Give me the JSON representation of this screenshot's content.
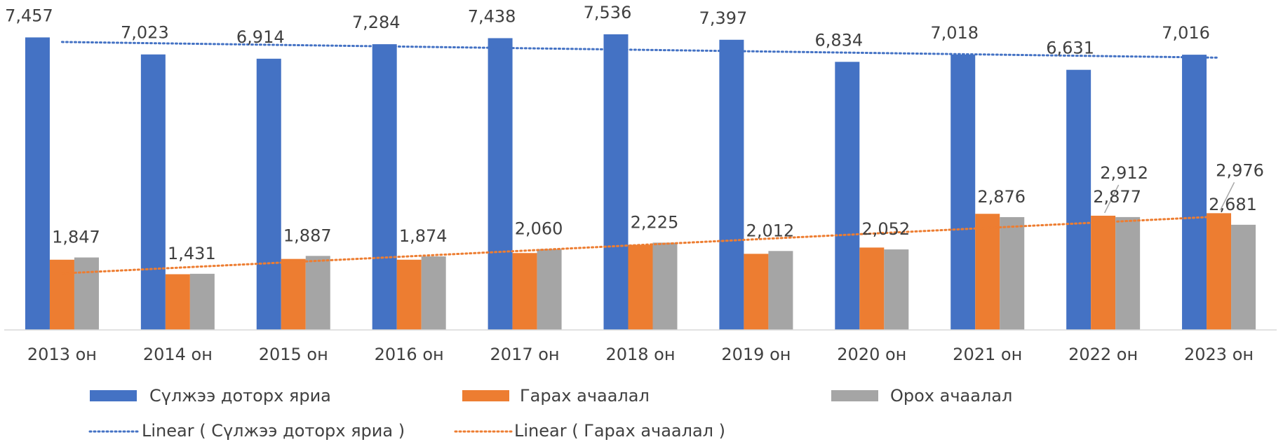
{
  "chart_data": {
    "type": "bar",
    "categories": [
      "2013 он",
      "2014 он",
      "2015 он",
      "2016 он",
      "2017 он",
      "2018 он",
      "2019 он",
      "2020 он",
      "2021 он",
      "2022 он",
      "2023 он"
    ],
    "series": [
      {
        "name": "Сүлжээ доторх яриа",
        "color": "#4472c4",
        "values": [
          7457,
          7023,
          6914,
          7284,
          7438,
          7536,
          7397,
          6834,
          7018,
          6631,
          7016
        ],
        "value_labels": [
          "7,457",
          "7,023",
          "6,914",
          "7,284",
          "7,438",
          "7,536",
          "7,397",
          "6,834",
          "7,018",
          "6,631",
          "7,016"
        ]
      },
      {
        "name": "Гарах ачаалал",
        "color": "#ed7d31",
        "values": [
          1790,
          1420,
          1810,
          1790,
          1960,
          2170,
          1940,
          2100,
          2960,
          2912,
          2976
        ],
        "value_labels": [
          null,
          null,
          null,
          null,
          null,
          null,
          null,
          null,
          null,
          "2,912",
          "2,976"
        ]
      },
      {
        "name": "Орох ачаалал",
        "color": "#a5a5a5",
        "values": [
          1847,
          1431,
          1887,
          1874,
          2060,
          2225,
          2012,
          2052,
          2876,
          2877,
          2681
        ],
        "value_labels": [
          "1,847",
          "1,431",
          "1,887",
          "1,874",
          "2,060",
          "2,225",
          "2,012",
          "2,052",
          "2,876",
          "2,877",
          "2,681"
        ]
      }
    ],
    "trendlines": [
      {
        "name": "Linear ( Сүлжээ доторх яриа )",
        "series": 0
      },
      {
        "name": "Linear ( Гарах ачаалал  )",
        "series": 1
      }
    ],
    "ylim": [
      0,
      8000
    ]
  }
}
